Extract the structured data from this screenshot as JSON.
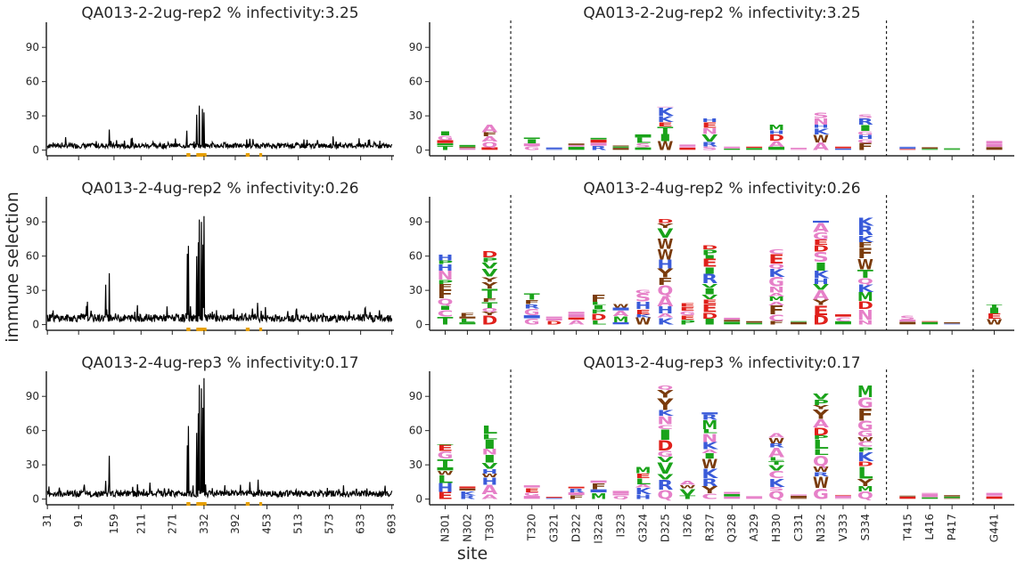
{
  "figure": {
    "ylabel": "immune selection",
    "xlabel": "site"
  },
  "chart_data": [
    {
      "type": "line",
      "panel": "line-row-1",
      "title": "QA013-2-2ug-rep2 % infectivity:3.25",
      "ylim": [
        -5,
        112
      ],
      "yticks": [
        0,
        30,
        60,
        90
      ],
      "xlim": [
        29,
        697
      ],
      "xticks": [
        "31",
        "91",
        "159",
        "211",
        "271",
        "332",
        "392",
        "453",
        "513",
        "573",
        "633",
        "693"
      ],
      "peaks": [
        [
          150,
          18
        ],
        [
          299,
          17
        ],
        [
          318,
          31
        ],
        [
          323,
          39
        ],
        [
          329,
          36
        ],
        [
          332,
          33
        ],
        [
          370,
          7
        ],
        [
          420,
          10
        ],
        [
          648,
          9
        ]
      ],
      "highlighted_sites": [
        "301",
        "302",
        "303",
        "320",
        "321",
        "322",
        "323",
        "324",
        "325",
        "326",
        "327",
        "328",
        "329",
        "330",
        "331",
        "332",
        "333",
        "334",
        "415",
        "416",
        "417",
        "441"
      ],
      "baseline": 4
    },
    {
      "type": "line",
      "panel": "line-row-2",
      "title": "QA013-2-4ug-rep2 % infectivity:0.26",
      "ylim": [
        -5,
        112
      ],
      "yticks": [
        0,
        30,
        60,
        90
      ],
      "xlim": [
        29,
        697
      ],
      "xticks": [
        "31",
        "91",
        "159",
        "211",
        "271",
        "332",
        "392",
        "453",
        "513",
        "573",
        "633",
        "693"
      ],
      "peaks": [
        [
          108,
          20
        ],
        [
          143,
          35
        ],
        [
          150,
          45
        ],
        [
          204,
          17
        ],
        [
          300,
          62
        ],
        [
          302,
          69
        ],
        [
          318,
          60
        ],
        [
          321,
          72
        ],
        [
          323,
          92
        ],
        [
          327,
          90
        ],
        [
          332,
          95
        ],
        [
          330,
          70
        ],
        [
          405,
          10
        ],
        [
          425,
          14
        ],
        [
          435,
          19
        ],
        [
          651,
          11
        ]
      ],
      "highlighted_sites": [
        "301",
        "302",
        "303",
        "320",
        "321",
        "322",
        "323",
        "324",
        "325",
        "326",
        "327",
        "328",
        "329",
        "330",
        "331",
        "332",
        "333",
        "334",
        "415",
        "416",
        "417",
        "441"
      ],
      "baseline": 6
    },
    {
      "type": "line",
      "panel": "line-row-3",
      "title": "QA013-2-4ug-rep3 % infectivity:0.17",
      "ylim": [
        -5,
        112
      ],
      "yticks": [
        0,
        30,
        60,
        90
      ],
      "xlim": [
        29,
        697
      ],
      "xticks": [
        "31",
        "91",
        "159",
        "211",
        "271",
        "332",
        "392",
        "453",
        "513",
        "573",
        "633",
        "693"
      ],
      "peaks": [
        [
          143,
          16
        ],
        [
          150,
          38
        ],
        [
          204,
          13
        ],
        [
          300,
          47
        ],
        [
          302,
          64
        ],
        [
          318,
          58
        ],
        [
          321,
          75
        ],
        [
          323,
          100
        ],
        [
          327,
          97
        ],
        [
          332,
          106
        ],
        [
          330,
          80
        ],
        [
          420,
          15
        ],
        [
          436,
          17
        ],
        [
          600,
          12
        ]
      ],
      "highlighted_sites": [
        "301",
        "302",
        "303",
        "320",
        "321",
        "322",
        "323",
        "324",
        "325",
        "326",
        "327",
        "328",
        "329",
        "330",
        "331",
        "332",
        "333",
        "334",
        "415",
        "416",
        "417",
        "441"
      ],
      "baseline": 5
    },
    {
      "type": "bar",
      "panel": "logo-row-1",
      "title": "QA013-2-2ug-rep2 % infectivity:3.25",
      "ylim": [
        -5,
        112
      ],
      "yticks": [
        0,
        30,
        60,
        90
      ],
      "categories": [
        "N301",
        "N302",
        "T303",
        "T320",
        "G321",
        "D322",
        "I322a",
        "I323",
        "G324",
        "D325",
        "I326",
        "R327",
        "Q328",
        "A329",
        "H330",
        "C331",
        "N332",
        "V333",
        "S334",
        "T415",
        "L416",
        "P417",
        "G441"
      ],
      "values": [
        20,
        5,
        24,
        11,
        3,
        6,
        12,
        4,
        16,
        38,
        6,
        28,
        3,
        3,
        24,
        3,
        33,
        3,
        35,
        4,
        3,
        2,
        8
      ],
      "group_separators_after": [
        2,
        18,
        21
      ]
    },
    {
      "type": "bar",
      "panel": "logo-row-2",
      "title": "QA013-2-4ug-rep2 % infectivity:0.26",
      "ylim": [
        -5,
        112
      ],
      "yticks": [
        0,
        30,
        60,
        90
      ],
      "categories": [
        "N301",
        "N302",
        "T303",
        "T320",
        "G321",
        "D322",
        "I322a",
        "I323",
        "G324",
        "D325",
        "I326",
        "R327",
        "Q328",
        "A329",
        "H330",
        "C331",
        "N332",
        "V333",
        "S334",
        "T415",
        "L416",
        "P417",
        "G441"
      ],
      "values": [
        62,
        12,
        70,
        28,
        7,
        13,
        28,
        18,
        31,
        93,
        20,
        76,
        6,
        3,
        71,
        3,
        91,
        9,
        94,
        9,
        3,
        2,
        18
      ],
      "group_separators_after": [
        2,
        18,
        21
      ]
    },
    {
      "type": "bar",
      "panel": "logo-row-3",
      "title": "QA013-2-4ug-rep3 % infectivity:0.17",
      "ylim": [
        -5,
        112
      ],
      "yticks": [
        0,
        30,
        60,
        90
      ],
      "categories": [
        "N301",
        "N302",
        "T303",
        "T320",
        "G321",
        "D322",
        "I322a",
        "I323",
        "G324",
        "D325",
        "I326",
        "R327",
        "Q328",
        "A329",
        "H330",
        "C331",
        "N332",
        "V333",
        "S334",
        "T415",
        "L416",
        "P417",
        "G441"
      ],
      "values": [
        48,
        12,
        65,
        13,
        2,
        12,
        17,
        8,
        31,
        100,
        16,
        76,
        9,
        3,
        63,
        4,
        100,
        4,
        105,
        3,
        6,
        4,
        6
      ],
      "group_separators_after": [
        2,
        18,
        21
      ]
    }
  ],
  "logo_letters": [
    "K",
    "R",
    "A",
    "N",
    "D",
    "E",
    "Q",
    "G",
    "H",
    "S",
    "T",
    "P",
    "I",
    "L",
    "V",
    "M",
    "F",
    "W",
    "Y",
    "C"
  ],
  "logo_colors": {
    "K": "#3A5BD9",
    "R": "#3A5BD9",
    "H": "#3A5BD9",
    "D": "#E0201B",
    "E": "#E0201B",
    "A": "#E680C8",
    "N": "#E680C8",
    "Q": "#E680C8",
    "G": "#E680C8",
    "S": "#E680C8",
    "C": "#E680C8",
    "I": "#1AA31A",
    "L": "#1AA31A",
    "V": "#1AA31A",
    "M": "#1AA31A",
    "P": "#1AA31A",
    "T": "#1AA31A",
    "F": "#7A3B0C",
    "W": "#7A3B0C",
    "Y": "#7A3B0C"
  },
  "colors": {
    "line": "#000000",
    "highlight": "#E69F00",
    "axis": "#262626"
  }
}
